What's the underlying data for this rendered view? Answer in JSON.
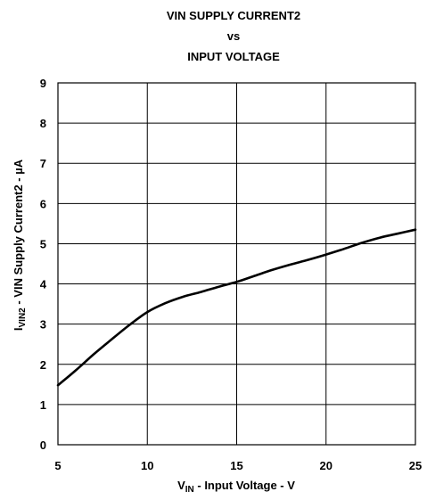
{
  "chart_data": {
    "type": "line",
    "title_lines": [
      "VIN SUPPLY CURRENT2",
      "vs",
      "INPUT VOLTAGE"
    ],
    "xlabel": {
      "main": "V",
      "sub": "IN",
      "rest": " - Input Voltage - V"
    },
    "ylabel": {
      "main": "I",
      "sub": "VIN2",
      "rest": " - VIN Supply Current2 - µA"
    },
    "xlim": [
      5,
      25
    ],
    "ylim": [
      0,
      9
    ],
    "x_ticks": [
      5,
      10,
      15,
      20,
      25
    ],
    "y_ticks": [
      0,
      1,
      2,
      3,
      4,
      5,
      6,
      7,
      8,
      9
    ],
    "grid": true,
    "series": [
      {
        "x": [
          5,
          6,
          7,
          8,
          9,
          10,
          11,
          12,
          13,
          14,
          15,
          16,
          17,
          18,
          19,
          20,
          21,
          22,
          23,
          24,
          25
        ],
        "values": [
          1.48,
          1.85,
          2.25,
          2.62,
          2.98,
          3.3,
          3.52,
          3.68,
          3.8,
          3.93,
          4.05,
          4.2,
          4.35,
          4.48,
          4.6,
          4.73,
          4.87,
          5.02,
          5.15,
          5.25,
          5.35
        ]
      }
    ]
  }
}
